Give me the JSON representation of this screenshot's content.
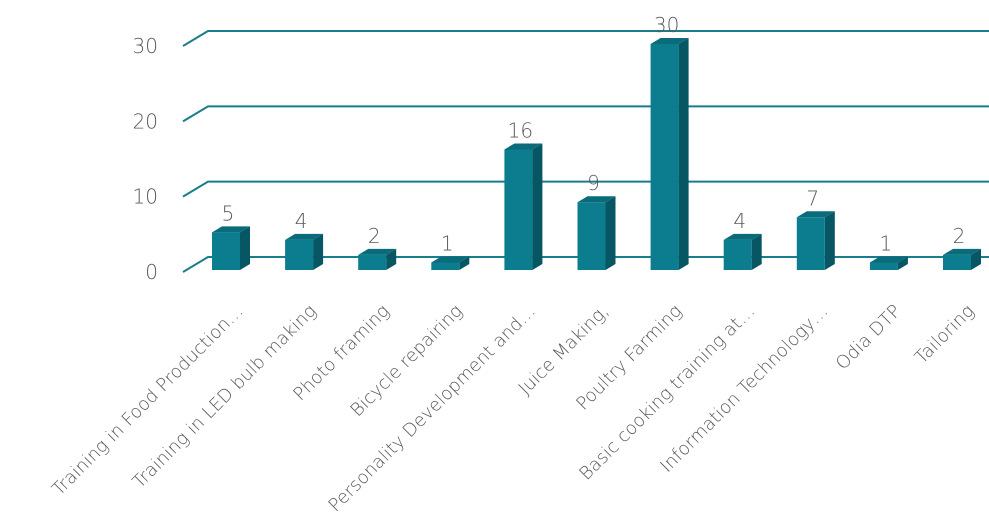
{
  "chart_data": {
    "type": "bar",
    "title": "",
    "xlabel": "",
    "ylabel": "",
    "categories": [
      "Training in Food Production…",
      "Training in LED bulb making",
      "Photo framing",
      "Bicycle repairing",
      "Personality Development and…",
      "Juice Making,",
      "Poultry Farming",
      "Basic cooking training at…",
      "Information Technology…",
      "Odia DTP",
      "Tailoring"
    ],
    "values": [
      5,
      4,
      2,
      1,
      16,
      9,
      30,
      4,
      7,
      1,
      2
    ],
    "ylim": [
      0,
      30
    ],
    "yticks": [
      0,
      10,
      20,
      30
    ],
    "grid": true,
    "legend": "none",
    "colors": {
      "bar_front": "#0b7d8f",
      "bar_side": "#075663",
      "bar_top": "#0a6b7a",
      "grid": "#1a7d8c",
      "text": "#595959"
    }
  }
}
